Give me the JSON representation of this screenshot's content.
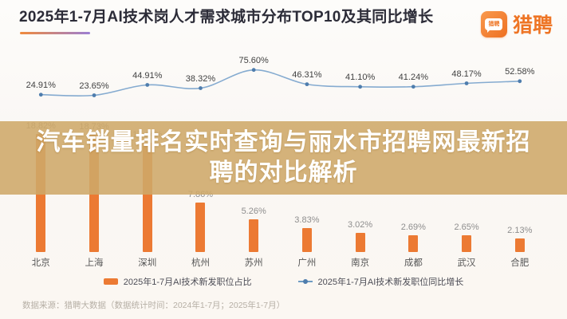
{
  "header": {
    "title": "2025年1-7月AI技术岗人才需求城市分布TOP10及其同比增长",
    "logo": {
      "wordmark": "猎聘",
      "bubble_text": "猎聘",
      "icon": "liepin-chat-bubble-icon"
    }
  },
  "overlay": {
    "title_lines": [
      "汽车销量排名实时查询与丽水市招聘网最新招",
      "聘的对比解析"
    ]
  },
  "chart_data": {
    "type": "bar",
    "subtype": "bar-line-combo",
    "title": "2025年1-7月AI技术岗人才需求城市分布TOP10及其同比增长",
    "categories": [
      "北京",
      "上海",
      "深圳",
      "杭州",
      "苏州",
      "广州",
      "南京",
      "成都",
      "武汉",
      "合肥"
    ],
    "series": [
      {
        "name": "2025年1-7月AI技术新发职位占比",
        "type": "bar",
        "unit": "%",
        "values": [
          18.82,
          18.73,
          17.44,
          7.86,
          5.26,
          3.83,
          3.02,
          2.69,
          2.65,
          2.13
        ]
      },
      {
        "name": "2025年1-7月AI技术新发职位同比增长",
        "type": "line",
        "unit": "%",
        "values": [
          24.91,
          23.65,
          44.91,
          38.32,
          75.6,
          46.31,
          41.1,
          41.24,
          48.17,
          52.58
        ]
      }
    ],
    "value_labels": true,
    "legend_position": "bottom",
    "axes_visible": false,
    "bar_ylim": [
      0,
      20
    ],
    "line_ylim": [
      0,
      100
    ]
  },
  "footer": {
    "source": "数据来源：猎聘大数据（数据统计时间：2024年1-7月；2025年1-7月）"
  },
  "colors": {
    "bar": "#ec7a33",
    "line": "#85abd0",
    "line_dot": "#4e7dad",
    "overlay_band": "rgba(206,168,105,0.88)",
    "logo_orange": "#ee7525",
    "underline_start": "#f08a3c",
    "underline_end": "#9b7fd4"
  }
}
